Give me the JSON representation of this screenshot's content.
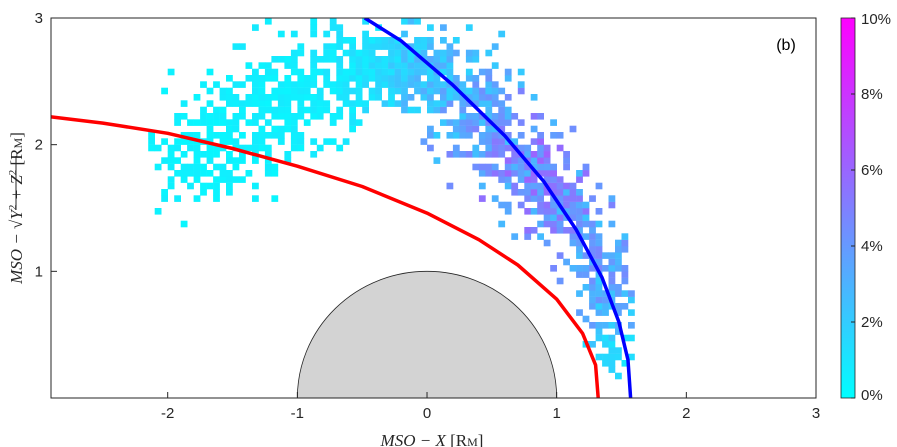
{
  "chart_data": {
    "type": "heatmap",
    "panel_label": "(b)",
    "xlabel_base": "MSO − X",
    "xlabel_unit": "[R",
    "xlabel_unit_sub": "M",
    "xlabel_unit_close": "]",
    "ylabel_base": "MSO − ",
    "ylabel_sqrt": "√",
    "ylabel_radicand": "Y",
    "ylabel_plus": " + Z",
    "ylabel_unit": " [R",
    "ylabel_unit_sub": "M",
    "ylabel_unit_close": "]",
    "xlim": [
      -2.9,
      3.0
    ],
    "ylim": [
      0,
      3
    ],
    "x_ticks": [
      -2,
      -1,
      0,
      1,
      2,
      3
    ],
    "x_tick_labels": [
      "-2",
      "-1",
      "0",
      "1",
      "2",
      "3"
    ],
    "y_ticks": [
      1,
      2,
      3
    ],
    "y_tick_labels": [
      "1",
      "2",
      "3"
    ],
    "colorbar": {
      "min": 0,
      "max": 10,
      "ticks": [
        0,
        2,
        4,
        6,
        8,
        10
      ],
      "tick_labels": [
        "0%",
        "2%",
        "4%",
        "6%",
        "8%",
        "10%"
      ],
      "colors": [
        "#00ffff",
        "#ff00ff"
      ]
    },
    "planet": {
      "center_x": 0,
      "center_y": 0,
      "radius": 1,
      "fill": "#d3d3d3"
    },
    "curves": [
      {
        "color": "#ff0000",
        "points": [
          [
            -2.9,
            2.22
          ],
          [
            -2.5,
            2.17
          ],
          [
            -2.0,
            2.09
          ],
          [
            -1.5,
            1.97
          ],
          [
            -1.0,
            1.83
          ],
          [
            -0.5,
            1.67
          ],
          [
            0.0,
            1.46
          ],
          [
            0.4,
            1.25
          ],
          [
            0.7,
            1.05
          ],
          [
            1.0,
            0.78
          ],
          [
            1.2,
            0.51
          ],
          [
            1.3,
            0.26
          ],
          [
            1.32,
            0.0
          ]
        ]
      },
      {
        "color": "#0000ff",
        "points": [
          [
            -0.48,
            3.0
          ],
          [
            -0.2,
            2.82
          ],
          [
            0.2,
            2.47
          ],
          [
            0.6,
            2.07
          ],
          [
            0.9,
            1.71
          ],
          [
            1.15,
            1.33
          ],
          [
            1.35,
            0.95
          ],
          [
            1.48,
            0.6
          ],
          [
            1.55,
            0.3
          ],
          [
            1.57,
            0.0
          ]
        ]
      }
    ],
    "heatmap_cell_size": 0.05,
    "heatmap_bands": [
      {
        "cx": -1.7,
        "cy": 1.95,
        "spread": 0.35,
        "value": 0.5
      },
      {
        "cx": -1.1,
        "cy": 2.35,
        "spread": 0.35,
        "value": 0.6
      },
      {
        "cx": -0.5,
        "cy": 2.6,
        "spread": 0.3,
        "value": 1.0
      },
      {
        "cx": 0.0,
        "cy": 2.55,
        "spread": 0.32,
        "value": 2.5
      },
      {
        "cx": 0.4,
        "cy": 2.2,
        "spread": 0.3,
        "value": 3.5
      },
      {
        "cx": 0.75,
        "cy": 1.8,
        "spread": 0.28,
        "value": 4.5
      },
      {
        "cx": 1.0,
        "cy": 1.5,
        "spread": 0.26,
        "value": 4.0
      },
      {
        "cx": 1.25,
        "cy": 1.1,
        "spread": 0.22,
        "value": 3.5
      },
      {
        "cx": 1.35,
        "cy": 0.7,
        "spread": 0.18,
        "value": 3.0
      },
      {
        "cx": 1.4,
        "cy": 0.35,
        "spread": 0.14,
        "value": 1.5
      }
    ]
  }
}
